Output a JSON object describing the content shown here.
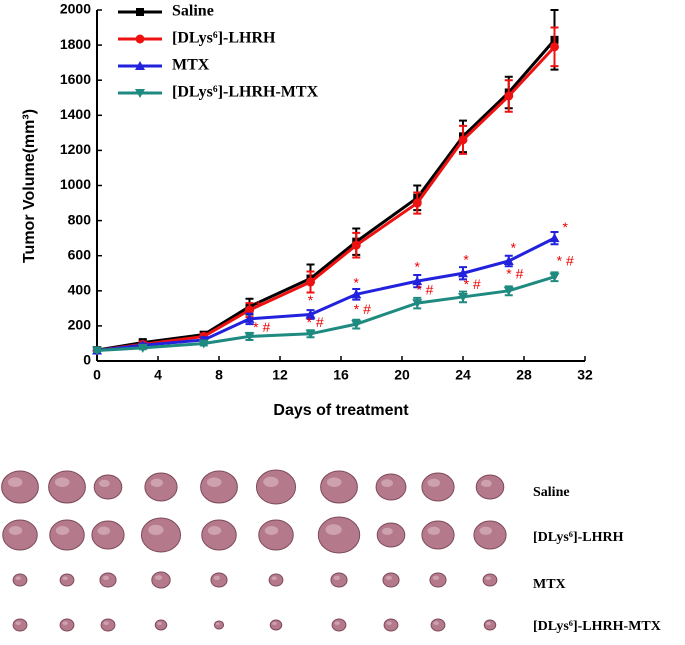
{
  "chart_data": {
    "type": "line",
    "x_label": "Days of treatment",
    "y_label": "Tumor Volume(mm³)",
    "x": [
      0,
      3,
      7,
      10,
      14,
      17,
      21,
      24,
      27,
      30
    ],
    "xlim": [
      0,
      32
    ],
    "xticks": [
      0,
      4,
      8,
      12,
      16,
      20,
      24,
      28,
      32
    ],
    "ylim": [
      0,
      2000
    ],
    "yticks": [
      0,
      200,
      400,
      600,
      800,
      1000,
      1200,
      1400,
      1600,
      1800,
      2000
    ],
    "legend": "top-left",
    "series": [
      {
        "name": "Saline",
        "color": "#000000",
        "marker": "square",
        "values": [
          62,
          105,
          150,
          310,
          470,
          680,
          930,
          1280,
          1530,
          1830
        ],
        "errors": [
          10,
          20,
          15,
          45,
          80,
          75,
          70,
          90,
          90,
          170
        ]
      },
      {
        "name": "[DLys⁶]-LHRH",
        "color": "#ee1111",
        "marker": "circle",
        "values": [
          60,
          95,
          140,
          290,
          450,
          660,
          900,
          1260,
          1510,
          1790
        ],
        "errors": [
          10,
          15,
          15,
          40,
          60,
          70,
          60,
          80,
          90,
          110
        ]
      },
      {
        "name": "MTX",
        "color": "#2222dd",
        "marker": "triangle-up",
        "values": [
          60,
          90,
          120,
          240,
          265,
          380,
          455,
          500,
          570,
          700
        ],
        "errors": [
          8,
          10,
          15,
          30,
          25,
          30,
          35,
          35,
          30,
          35
        ]
      },
      {
        "name": "[DLys⁶]-LHRH-MTX",
        "color": "#1f8a80",
        "marker": "triangle-down",
        "values": [
          60,
          75,
          100,
          140,
          155,
          210,
          330,
          365,
          400,
          480
        ],
        "errors": [
          8,
          8,
          12,
          20,
          20,
          25,
          30,
          30,
          25,
          25
        ]
      }
    ],
    "annotations": [
      {
        "text": "*",
        "x": 10.6,
        "y": 310
      },
      {
        "text": "* #",
        "x": 10.8,
        "y": 185
      },
      {
        "text": "*",
        "x": 14,
        "y": 340
      },
      {
        "text": "* #",
        "x": 14.3,
        "y": 215
      },
      {
        "text": "*",
        "x": 17,
        "y": 440
      },
      {
        "text": "* #",
        "x": 17.4,
        "y": 290
      },
      {
        "text": "*",
        "x": 21,
        "y": 530
      },
      {
        "text": "* #",
        "x": 21.5,
        "y": 400
      },
      {
        "text": "*",
        "x": 24.2,
        "y": 570
      },
      {
        "text": "* #",
        "x": 24.6,
        "y": 430
      },
      {
        "text": "*",
        "x": 27.3,
        "y": 640
      },
      {
        "text": "* #",
        "x": 27.4,
        "y": 490
      },
      {
        "text": "*",
        "x": 30.7,
        "y": 755
      },
      {
        "text": "* #",
        "x": 30.7,
        "y": 565
      }
    ]
  },
  "photo_labels": [
    "Saline",
    "[DLys⁶]-LHRH",
    "MTX",
    "[DLys⁶]-LHRH-MTX"
  ]
}
